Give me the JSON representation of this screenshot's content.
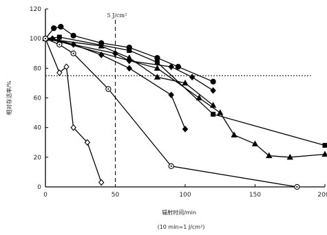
{
  "chart_data": {
    "type": "line",
    "title": "",
    "xlabel": "辐射时间/min",
    "xlabel_note": "(10 min=1 J/cm²)",
    "ylabel": "相对存活率/%",
    "xlim": [
      0,
      200
    ],
    "ylim": [
      0,
      120
    ],
    "x_ticks": [
      0,
      50,
      100,
      150,
      200
    ],
    "y_ticks": [
      0,
      20,
      40,
      60,
      80,
      100,
      120
    ],
    "grid": false,
    "reference_lines": [
      {
        "orientation": "vertical",
        "x": 50,
        "label": "5 J/cm²",
        "style": "dashed"
      },
      {
        "orientation": "horizontal",
        "y": 75,
        "label": "",
        "style": "dotted"
      }
    ],
    "series": [
      {
        "marker": "circle-filled",
        "points": [
          [
            0,
            100
          ],
          [
            6,
            107
          ],
          [
            11,
            108
          ],
          [
            20,
            102
          ],
          [
            40,
            97
          ],
          [
            60,
            94
          ],
          [
            80,
            87
          ],
          [
            95,
            81
          ],
          [
            120,
            71
          ]
        ]
      },
      {
        "marker": "square-filled",
        "points": [
          [
            0,
            100
          ],
          [
            10,
            101
          ],
          [
            60,
            92
          ],
          [
            80,
            84
          ],
          [
            120,
            49
          ],
          [
            200,
            28
          ]
        ]
      },
      {
        "marker": "triangle-filled",
        "points": [
          [
            0,
            100
          ],
          [
            10,
            98
          ],
          [
            80,
            80
          ],
          [
            110,
            60
          ],
          [
            125,
            50
          ],
          [
            135,
            35
          ],
          [
            150,
            29
          ],
          [
            160,
            21
          ],
          [
            175,
            20
          ],
          [
            200,
            22
          ]
        ]
      },
      {
        "marker": "diamond-filled",
        "points": [
          [
            0,
            100
          ],
          [
            5,
            100
          ],
          [
            20,
            96
          ],
          [
            40,
            89
          ],
          [
            60,
            80
          ],
          [
            90,
            62
          ],
          [
            100,
            39
          ]
        ]
      },
      {
        "marker": "diamond-filled",
        "points": [
          [
            0,
            100
          ],
          [
            50,
            90
          ],
          [
            60,
            85
          ],
          [
            90,
            81
          ],
          [
            105,
            74
          ],
          [
            120,
            65
          ]
        ]
      },
      {
        "marker": "triangle-filled",
        "points": [
          [
            0,
            100
          ],
          [
            40,
            95
          ],
          [
            60,
            87
          ],
          [
            80,
            74
          ],
          [
            100,
            70
          ],
          [
            120,
            55
          ]
        ]
      },
      {
        "marker": "diamond-open",
        "points": [
          [
            0,
            100
          ],
          [
            10,
            77
          ],
          [
            15,
            81
          ],
          [
            20,
            40
          ],
          [
            30,
            30
          ],
          [
            40,
            3
          ]
        ]
      },
      {
        "marker": "circle-open",
        "points": [
          [
            0,
            100
          ],
          [
            10,
            96
          ],
          [
            20,
            90
          ],
          [
            45,
            66
          ],
          [
            90,
            14
          ],
          [
            180,
            0
          ]
        ]
      }
    ]
  }
}
